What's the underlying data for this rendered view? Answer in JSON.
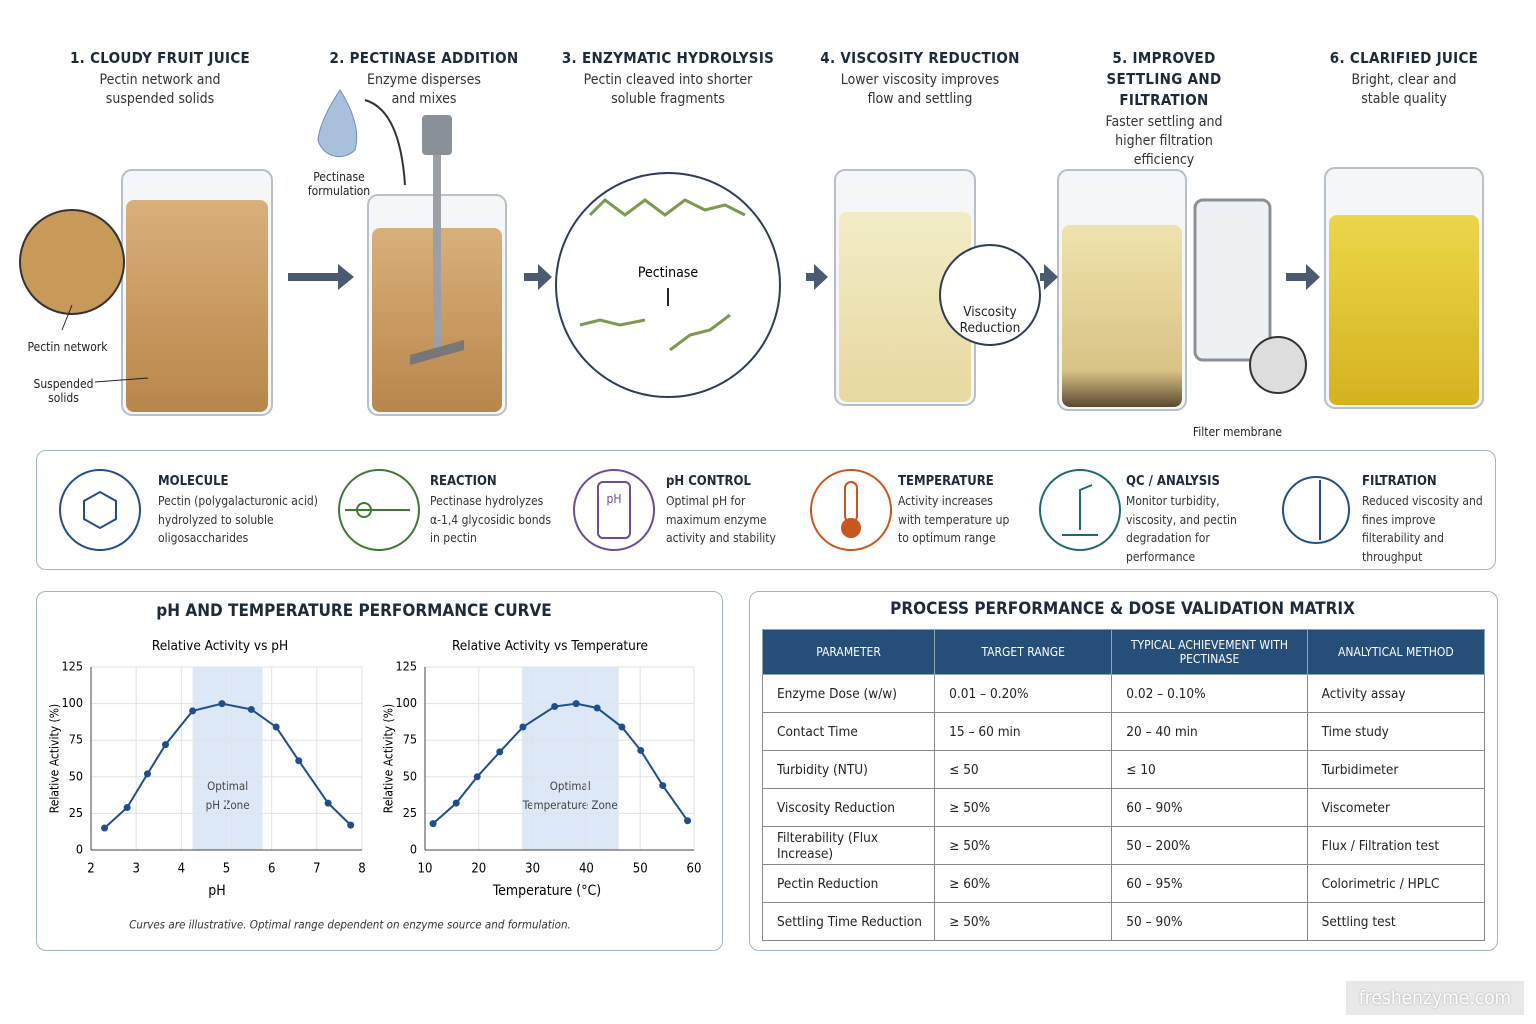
{
  "process_steps": [
    {
      "title": "1. CLOUDY FRUIT JUICE",
      "description": "Pectin network and suspended solids"
    },
    {
      "title": "2. PECTINASE ADDITION",
      "description": "Enzyme disperses and mixes"
    },
    {
      "title": "3. ENZYMATIC HYDROLYSIS",
      "description": "Pectin cleaved into shorter soluble fragments"
    },
    {
      "title": "4. VISCOSITY REDUCTION",
      "description": "Lower viscosity improves flow and settling"
    },
    {
      "title": "5. IMPROVED SETTLING AND FILTRATION",
      "description": "Faster settling and higher filtration efficiency"
    },
    {
      "title": "6. CLARIFIED JUICE",
      "description": "Bright, clear and stable quality"
    }
  ],
  "illustration_labels": {
    "pectin_network": "Pectin network",
    "suspended_solids": "Suspended solids",
    "pectinase_formulation": "Pectinase formulation",
    "pectinase": "Pectinase",
    "viscosity_reduction": "Viscosity Reduction",
    "filter_membrane": "Filter membrane"
  },
  "features": [
    {
      "title": "MOLECULE",
      "description": "Pectin (polygalacturonic acid) hydrolyzed to soluble oligosaccharides"
    },
    {
      "title": "REACTION",
      "description": "Pectinase hydrolyzes α-1,4 glycosidic bonds in pectin"
    },
    {
      "title": "pH CONTROL",
      "description": "Optimal pH for maximum enzyme activity and stability"
    },
    {
      "title": "TEMPERATURE",
      "description": "Activity increases with temperature up to optimum range"
    },
    {
      "title": "QC / ANALYSIS",
      "description": "Monitor turbidity, viscosity, and pectin degradation for performance"
    },
    {
      "title": "FILTRATION",
      "description": "Reduced viscosity and fines improve filterability and throughput"
    }
  ],
  "charts_panel": {
    "title": "pH AND TEMPERATURE PERFORMANCE CURVE",
    "footnote": "Curves are illustrative. Optimal range dependent on enzyme source and formulation."
  },
  "chart_data": [
    {
      "type": "line",
      "title": "Relative Activity vs pH",
      "x_label": "pH",
      "y_label": "Relative Activity (%)",
      "x": [
        2.3,
        2.8,
        3.25,
        3.65,
        4.25,
        4.9,
        5.55,
        6.1,
        6.6,
        7.25,
        7.75
      ],
      "values": [
        15,
        29,
        52,
        72,
        95,
        100,
        96,
        84,
        61,
        32,
        17
      ],
      "color": "#1f4e8c",
      "xlim": [
        2,
        8
      ],
      "xticks": [
        2,
        3,
        4,
        5,
        6,
        7,
        8
      ],
      "ylim": [
        0,
        125
      ],
      "yticks": [
        0,
        25,
        50,
        75,
        100,
        125
      ],
      "grid": true,
      "band": {
        "range": [
          4.25,
          5.8
        ],
        "label": "Optimal pH Zone"
      }
    },
    {
      "type": "line",
      "title": "Relative Activity vs Temperature",
      "x_label": "Temperature (°C)",
      "y_label": "Relative Activity (%)",
      "x": [
        11.5,
        15.8,
        19.7,
        23.9,
        28.2,
        34.1,
        38.1,
        42,
        46.6,
        50.1,
        54.2,
        58.8
      ],
      "values": [
        18,
        32,
        50,
        67,
        84,
        98,
        100,
        97,
        84,
        68,
        44,
        20
      ],
      "color": "#1f4e8c",
      "xlim": [
        10,
        60
      ],
      "xticks": [
        10,
        20,
        30,
        40,
        50,
        60
      ],
      "ylim": [
        0,
        125
      ],
      "yticks": [
        0,
        25,
        50,
        75,
        100,
        125
      ],
      "grid": true,
      "band": {
        "range": [
          28,
          46
        ],
        "label": "Optimal Temperature Zone"
      }
    }
  ],
  "table": {
    "title": "PROCESS PERFORMANCE & DOSE VALIDATION MATRIX",
    "header": [
      "PARAMETER",
      "TARGET RANGE",
      "TYPICAL ACHIEVEMENT WITH PECTINASE",
      "ANALYTICAL METHOD"
    ],
    "rows": [
      [
        "Enzyme Dose (w/w)",
        "0.01 – 0.20%",
        "0.02 – 0.10%",
        "Activity assay"
      ],
      [
        "Contact Time",
        "15 – 60 min",
        "20 – 40 min",
        "Time study"
      ],
      [
        "Turbidity (NTU)",
        "≤ 50",
        "≤ 10",
        "Turbidimeter"
      ],
      [
        "Viscosity Reduction",
        "≥ 50%",
        "60 – 90%",
        "Viscometer"
      ],
      [
        "Filterability (Flux Increase)",
        "≥ 50%",
        "50 – 200%",
        "Flux / Filtration test"
      ],
      [
        "Pectin Reduction",
        "≥ 60%",
        "60 – 95%",
        "Colorimetric / HPLC"
      ],
      [
        "Settling Time Reduction",
        "≥ 50%",
        "50 – 90%",
        "Settling test"
      ]
    ]
  },
  "footer": {
    "watermark": "freshenzyme.com"
  }
}
